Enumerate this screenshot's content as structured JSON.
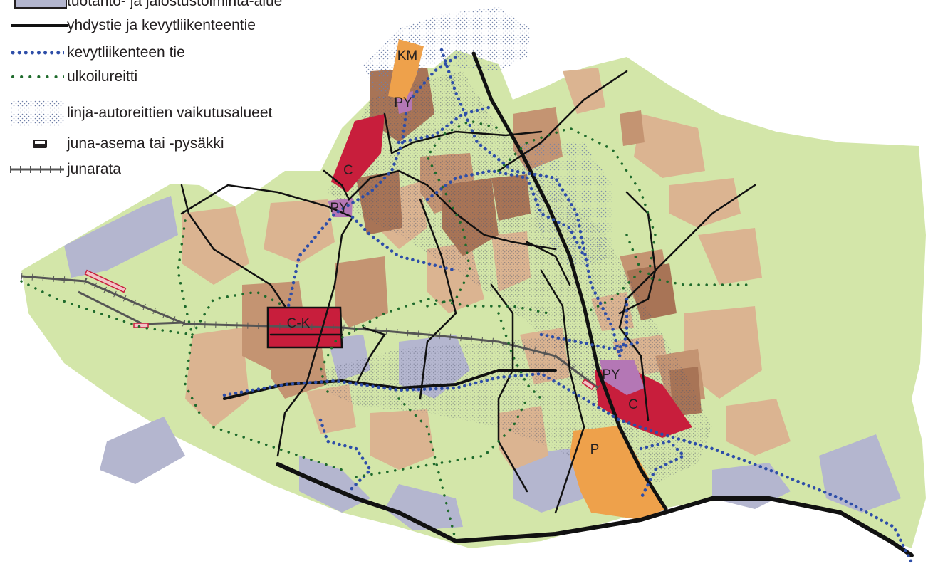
{
  "legend": {
    "items": [
      {
        "label": "tuotanto- ja jalostustoiminta-alue",
        "symbol": "lavender-area-icon",
        "color": "#b4b6cf"
      },
      {
        "label": "yhdystie ja kevytliikenteentie",
        "symbol": "black-line-icon",
        "color": "#000000"
      },
      {
        "label": "kevytliikenteen tie",
        "symbol": "blue-dotted-line-icon",
        "color": "#2e4ea8"
      },
      {
        "label": "ulkoilureitti",
        "symbol": "green-dotted-line-icon",
        "color": "#1f6b2c"
      },
      {
        "label": "linja-autoreittien vaikutusalueet",
        "symbol": "stipple-area-icon",
        "color": "#9aa7c6"
      },
      {
        "label": "juna-asema tai -pysäkki",
        "symbol": "train-station-icon",
        "color": "#231f20"
      },
      {
        "label": "junarata",
        "symbol": "railway-line-icon",
        "color": "#555555"
      }
    ]
  },
  "zones": {
    "km": "KM",
    "py_north": "PY",
    "c_north": "C",
    "py_mid": "PY",
    "ck_center": "C-K",
    "py_east": "PY",
    "c_east": "C",
    "p_south": "P"
  },
  "colors": {
    "green_area": "#d3e6a9",
    "light_brown": "#dbb491",
    "mid_brown": "#c49472",
    "dark_brown": "#a87456",
    "lavender": "#b4b6cf",
    "crimson": "#c81e3c",
    "purple": "#b477b5",
    "orange": "#eea14b",
    "road": "#111111",
    "light_traffic": "#2e4ea8",
    "outdoor_route": "#1f6b2c",
    "rail": "#555555"
  }
}
